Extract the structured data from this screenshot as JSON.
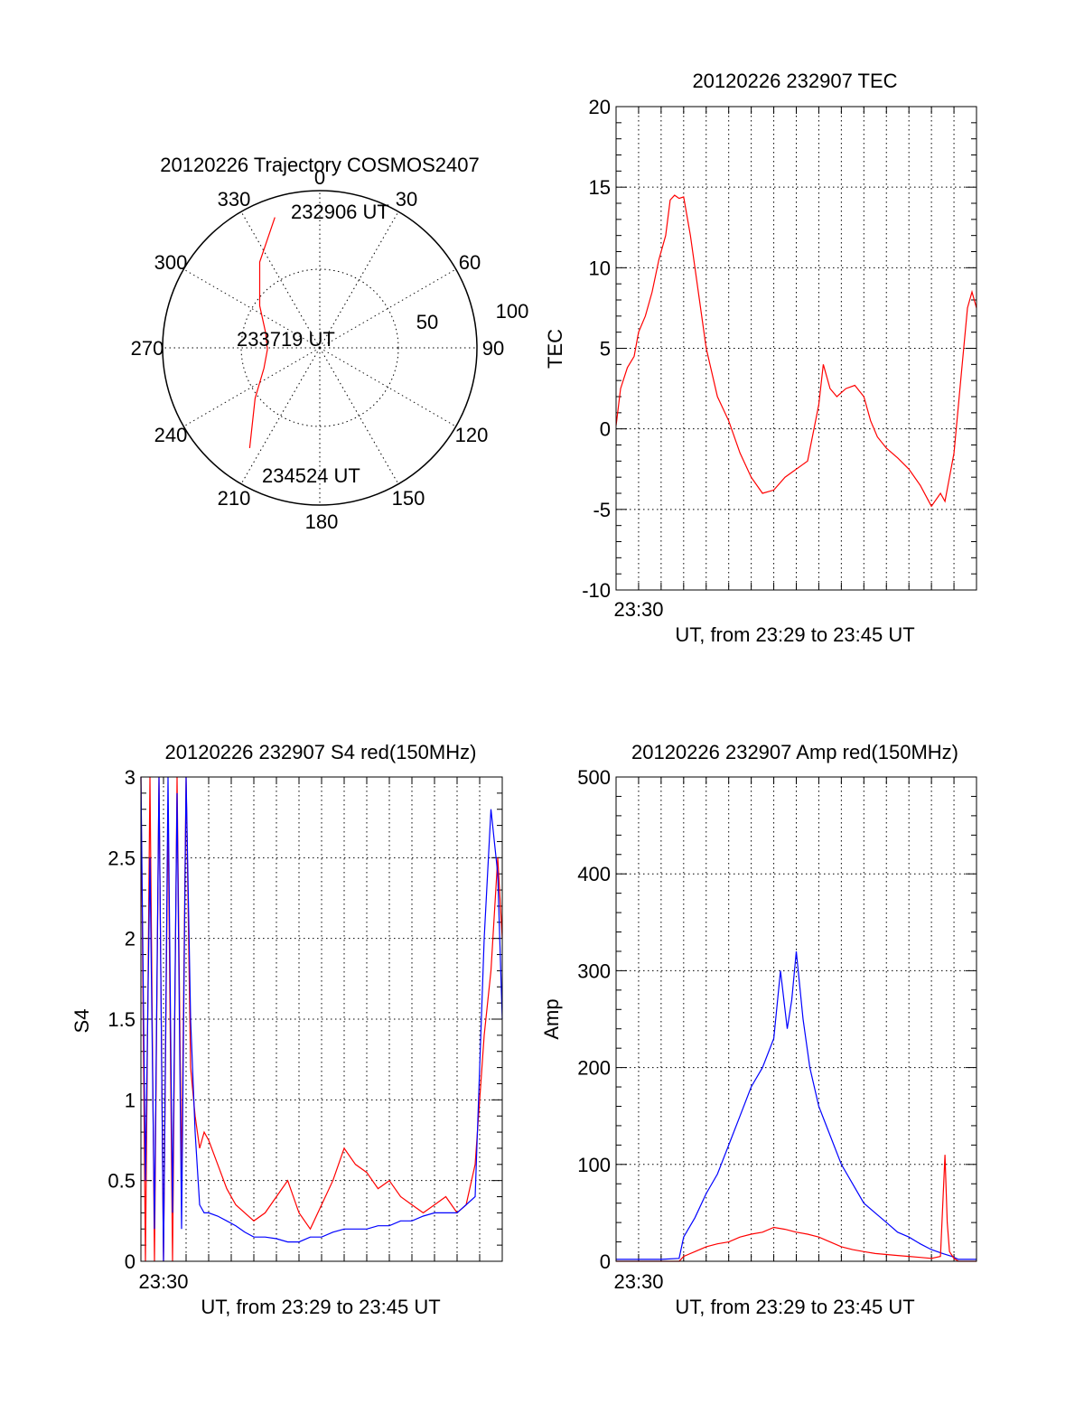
{
  "chart_data": [
    {
      "type": "polar",
      "title": "20120226 Trajectory COSMOS2407",
      "azimuth_labels": [
        "0",
        "30",
        "60",
        "90",
        "120",
        "150",
        "180",
        "210",
        "240",
        "270",
        "300",
        "330"
      ],
      "radial_labels": [
        "50",
        "100"
      ],
      "annotations": [
        "232906 UT",
        "233719 UT",
        "234524 UT"
      ],
      "track_color": "#ff0000",
      "track": [
        {
          "azimuth": 341,
          "elevation": 11
        },
        {
          "azimuth": 325,
          "elevation": 30
        },
        {
          "azimuth": 305,
          "elevation": 48
        },
        {
          "azimuth": 285,
          "elevation": 58
        },
        {
          "azimuth": 268,
          "elevation": 60
        },
        {
          "azimuth": 250,
          "elevation": 56
        },
        {
          "azimuth": 232,
          "elevation": 43
        },
        {
          "azimuth": 215,
          "elevation": 20
        }
      ]
    },
    {
      "type": "line",
      "title": "20120226 232907 TEC",
      "ylabel": "TEC",
      "xlabel": "UT, from 23:29 to 23:45 UT",
      "x_tick_label": "23:30",
      "ylim": [
        -10,
        20
      ],
      "y_ticks": [
        "20",
        "15",
        "10",
        "5",
        "0",
        "-5",
        "-10"
      ],
      "xlim": [
        0,
        16
      ],
      "series_color": "#ff0000",
      "series": [
        {
          "x": [
            0,
            0.2,
            0.5,
            0.8,
            1.0,
            1.3,
            1.6,
            1.9,
            2.2,
            2.4,
            2.6,
            2.8,
            3.0,
            3.3,
            3.7,
            4.0,
            4.5,
            5.0,
            5.5,
            6.0,
            6.5,
            7.0,
            7.5,
            8.0,
            8.5,
            9.0,
            9.2,
            9.5,
            9.8,
            10.2,
            10.6,
            11.0,
            11.3,
            11.6,
            12.0,
            12.5,
            13.0,
            13.5,
            14.0,
            14.4,
            14.6,
            14.8,
            15.0,
            15.3,
            15.6,
            15.8,
            16.0
          ],
          "y": [
            0.2,
            2.5,
            3.8,
            4.5,
            6.0,
            7.0,
            8.5,
            10.5,
            12.0,
            14.2,
            14.5,
            14.3,
            14.4,
            12.0,
            8.0,
            5.0,
            2.0,
            0.5,
            -1.5,
            -3.0,
            -4.0,
            -3.8,
            -3.0,
            -2.5,
            -2.0,
            1.5,
            4.0,
            2.5,
            2.0,
            2.5,
            2.7,
            2.0,
            0.5,
            -0.5,
            -1.2,
            -1.8,
            -2.5,
            -3.5,
            -4.8,
            -4.0,
            -4.5,
            -3.0,
            -1.5,
            3.0,
            7.5,
            8.5,
            7.5
          ]
        }
      ]
    },
    {
      "type": "line",
      "title": "20120226 232907 S4 red(150MHz)",
      "ylabel": "S4",
      "xlabel": "UT, from 23:29 to 23:45 UT",
      "x_tick_label": "23:30",
      "ylim": [
        0,
        3
      ],
      "y_ticks": [
        "3",
        "2.5",
        "2",
        "1.5",
        "1",
        "0.5",
        "0"
      ],
      "xlim": [
        0,
        16
      ],
      "series": [
        {
          "color": "#ff0000",
          "x": [
            0,
            0.2,
            0.4,
            0.6,
            0.8,
            1.0,
            1.2,
            1.4,
            1.6,
            1.8,
            2.0,
            2.2,
            2.4,
            2.6,
            2.8,
            3.0,
            3.4,
            3.8,
            4.2,
            4.6,
            5.0,
            5.5,
            6.0,
            6.5,
            7.0,
            7.5,
            8.0,
            8.5,
            9.0,
            9.5,
            10.0,
            10.5,
            11.0,
            11.5,
            12.0,
            12.5,
            13.0,
            13.5,
            14.0,
            14.4,
            14.8,
            15.0,
            15.2,
            15.5,
            15.8,
            16.0
          ],
          "y": [
            3.0,
            0.0,
            3.0,
            0.0,
            3.0,
            0.0,
            2.8,
            0.0,
            3.0,
            0.5,
            3.0,
            1.2,
            0.9,
            0.7,
            0.8,
            0.75,
            0.6,
            0.45,
            0.35,
            0.3,
            0.25,
            0.3,
            0.4,
            0.5,
            0.3,
            0.2,
            0.35,
            0.5,
            0.7,
            0.6,
            0.55,
            0.45,
            0.5,
            0.4,
            0.35,
            0.3,
            0.35,
            0.4,
            0.3,
            0.35,
            0.6,
            1.0,
            1.4,
            1.8,
            2.5,
            2.0
          ]
        },
        {
          "color": "#0000ff",
          "x": [
            0,
            0.2,
            0.4,
            0.6,
            0.8,
            1.0,
            1.2,
            1.4,
            1.6,
            1.8,
            2.0,
            2.2,
            2.4,
            2.6,
            2.8,
            3.0,
            3.4,
            3.8,
            4.2,
            4.6,
            5.0,
            5.5,
            6.0,
            6.5,
            7.0,
            7.5,
            8.0,
            8.5,
            9.0,
            9.5,
            10.0,
            10.5,
            11.0,
            11.5,
            12.0,
            12.5,
            13.0,
            13.5,
            14.0,
            14.4,
            14.8,
            15.0,
            15.2,
            15.5,
            15.8,
            16.0
          ],
          "y": [
            3.0,
            0.5,
            2.5,
            0.2,
            3.0,
            0.0,
            3.0,
            0.3,
            2.9,
            0.2,
            3.0,
            1.5,
            0.8,
            0.35,
            0.3,
            0.3,
            0.28,
            0.25,
            0.22,
            0.18,
            0.15,
            0.15,
            0.14,
            0.12,
            0.12,
            0.15,
            0.15,
            0.18,
            0.2,
            0.2,
            0.2,
            0.22,
            0.22,
            0.25,
            0.25,
            0.28,
            0.3,
            0.3,
            0.3,
            0.35,
            0.4,
            1.2,
            2.0,
            2.8,
            2.4,
            1.5
          ]
        }
      ]
    },
    {
      "type": "line",
      "title": "20120226 232907 Amp red(150MHz)",
      "ylabel": "Amp",
      "xlabel": "UT, from 23:29 to 23:45 UT",
      "x_tick_label": "23:30",
      "ylim": [
        0,
        500
      ],
      "y_ticks": [
        "500",
        "400",
        "300",
        "200",
        "100",
        "0"
      ],
      "xlim": [
        0,
        16
      ],
      "series": [
        {
          "color": "#0000ff",
          "x": [
            0,
            1,
            2,
            2.8,
            3.0,
            3.5,
            4.0,
            4.5,
            5.0,
            5.5,
            6.0,
            6.5,
            7.0,
            7.3,
            7.6,
            7.8,
            8.0,
            8.3,
            8.6,
            9.0,
            9.5,
            10.0,
            10.5,
            11.0,
            11.5,
            12.0,
            12.5,
            13.0,
            13.5,
            14.0,
            14.5,
            14.9,
            15.2,
            16.0
          ],
          "y": [
            2,
            2,
            2,
            3,
            25,
            45,
            70,
            90,
            120,
            150,
            180,
            200,
            230,
            300,
            240,
            270,
            320,
            250,
            200,
            160,
            130,
            100,
            80,
            60,
            50,
            40,
            30,
            25,
            18,
            12,
            8,
            5,
            2,
            2
          ]
        },
        {
          "color": "#ff0000",
          "x": [
            0,
            1,
            2,
            2.8,
            3.0,
            3.5,
            4.0,
            4.5,
            5.0,
            5.5,
            6.0,
            6.5,
            7.0,
            7.5,
            8.0,
            8.5,
            9.0,
            9.5,
            10.0,
            10.5,
            11.0,
            11.5,
            12.0,
            12.5,
            13.0,
            13.5,
            14.0,
            14.4,
            14.6,
            14.7,
            14.8,
            15.0,
            15.2,
            16.0
          ],
          "y": [
            0,
            0,
            0,
            0,
            5,
            10,
            15,
            18,
            20,
            25,
            28,
            30,
            35,
            33,
            30,
            28,
            25,
            20,
            15,
            12,
            10,
            8,
            7,
            6,
            5,
            4,
            3,
            5,
            110,
            40,
            10,
            3,
            0,
            0
          ]
        }
      ]
    }
  ]
}
